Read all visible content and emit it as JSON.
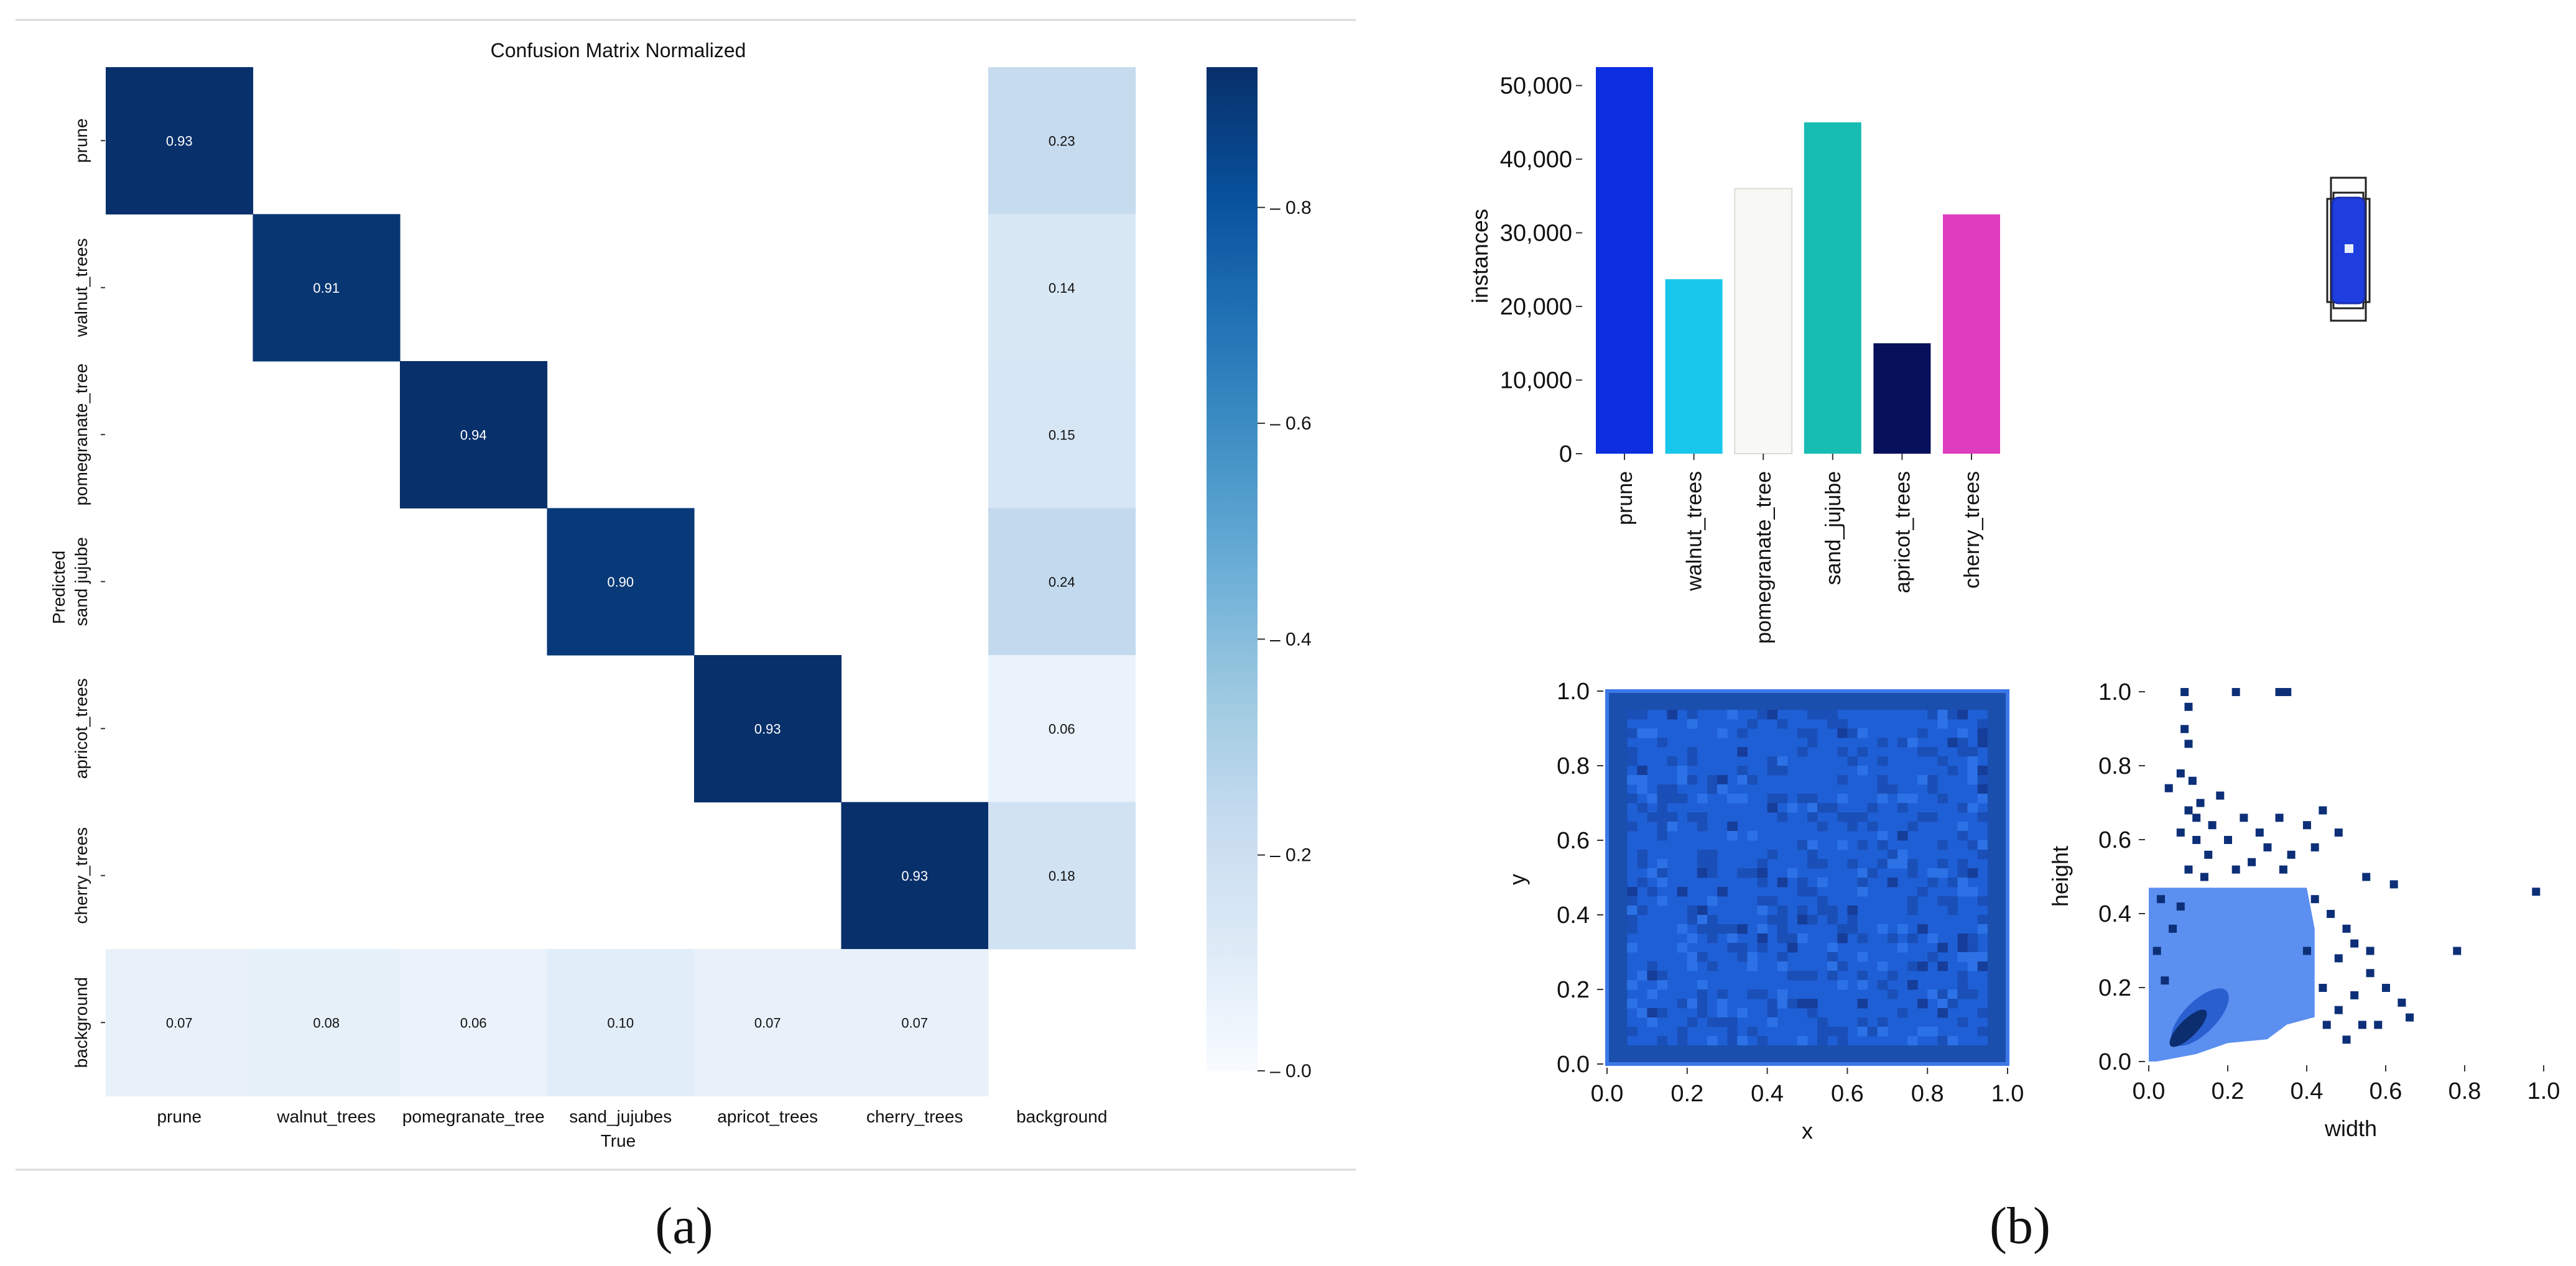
{
  "panel_a": {
    "caption": "(a)",
    "chart_data": {
      "type": "heatmap",
      "title": "Confusion Matrix Normalized",
      "xlabel": "True",
      "ylabel": "Predicted",
      "x_categories": [
        "prune",
        "walnut_trees",
        "pomegranate_tree",
        "sand_jujubes",
        "apricot_trees",
        "cherry_trees",
        "background"
      ],
      "y_categories": [
        "prune",
        "walnut_trees",
        "pomegranate_tree",
        "sand jujube",
        "apricot_trees",
        "cherry_trees",
        "background"
      ],
      "values": [
        [
          0.93,
          null,
          null,
          null,
          null,
          null,
          0.23
        ],
        [
          null,
          0.91,
          null,
          null,
          null,
          null,
          0.14
        ],
        [
          null,
          null,
          0.94,
          null,
          null,
          null,
          0.15
        ],
        [
          null,
          null,
          null,
          0.9,
          null,
          null,
          0.24
        ],
        [
          null,
          null,
          null,
          null,
          0.93,
          null,
          0.06
        ],
        [
          null,
          null,
          null,
          null,
          null,
          0.93,
          0.18
        ],
        [
          0.07,
          0.08,
          0.06,
          0.1,
          0.07,
          0.07,
          null
        ]
      ],
      "colorbar": {
        "range": [
          0.0,
          0.93
        ],
        "ticks": [
          "0.0",
          "0.2",
          "0.4",
          "0.6",
          "0.8"
        ],
        "tick_values": [
          0.0,
          0.2,
          0.4,
          0.6,
          0.8
        ]
      },
      "colormap": "Blues",
      "high_color": "#08306b",
      "low_color": "#f7fbff"
    }
  },
  "panel_b": {
    "caption": "(b)",
    "bar_chart": {
      "type": "bar",
      "categories": [
        "prune",
        "walnut_trees",
        "pomegranate_tree",
        "sand_jujube",
        "apricot_trees",
        "cherry_trees"
      ],
      "values": [
        52500,
        23700,
        36000,
        45000,
        15000,
        32500
      ],
      "colors": [
        "#0a2ee0",
        "#19c6ec",
        "#f8f8f4",
        "#17bcb2",
        "#07105a",
        "#de3dc0"
      ],
      "ylabel": "instances",
      "ylim": [
        0,
        52500
      ],
      "yticks": [
        "0",
        "10,000",
        "20,000",
        "30,000",
        "40,000",
        "50,000"
      ],
      "ytick_values": [
        0,
        10000,
        20000,
        30000,
        40000,
        50000
      ]
    },
    "xy_plot": {
      "type": "heatmap",
      "xlabel": "x",
      "ylabel": "y",
      "xlim": [
        0,
        1
      ],
      "ylim": [
        0,
        1
      ],
      "xticks": [
        "0.0",
        "0.2",
        "0.4",
        "0.6",
        "0.8",
        "1.0"
      ],
      "yticks": [
        "0.0",
        "0.2",
        "0.4",
        "0.6",
        "0.8",
        "1.0"
      ],
      "color": "#1f5fd6"
    },
    "wh_plot": {
      "type": "scatter",
      "xlabel": "width",
      "ylabel": "height",
      "xlim": [
        0,
        1
      ],
      "ylim": [
        0,
        1
      ],
      "xticks": [
        "0.0",
        "0.2",
        "0.4",
        "0.6",
        "0.8",
        "1.0"
      ],
      "yticks": [
        "0.0",
        "0.2",
        "0.4",
        "0.6",
        "0.8",
        "1.0"
      ],
      "color": "#0d2f78"
    }
  }
}
